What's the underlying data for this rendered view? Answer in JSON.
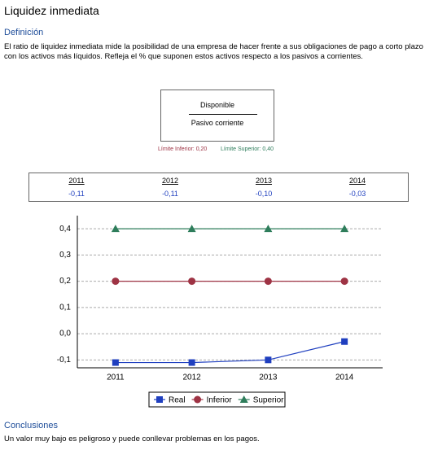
{
  "header": {
    "title": "Liquidez inmediata"
  },
  "definition": {
    "heading": "Definición",
    "text": "El ratio de liquidez inmediata mide la posibilidad de una empresa de hacer frente a sus obligaciones de pago a corto plazo con los activos más líquidos. Refleja el % que suponen estos activos respecto a los pasivos a corrientes."
  },
  "formula": {
    "numerator": "Disponible",
    "denominator": "Pasivo corriente"
  },
  "limits": {
    "lower_label": "Límite Inferior:",
    "lower_value": "0,20",
    "upper_label": "Límite Superior:",
    "upper_value": "0,40"
  },
  "table": {
    "columns": [
      "2011",
      "2012",
      "2013",
      "2014"
    ],
    "values": [
      "-0,11",
      "-0,11",
      "-0,10",
      "-0,03"
    ]
  },
  "chart_data": {
    "type": "line",
    "categories": [
      "2011",
      "2012",
      "2013",
      "2014"
    ],
    "series": [
      {
        "name": "Real",
        "color": "#1f3fbf",
        "marker": "square",
        "values": [
          -0.11,
          -0.11,
          -0.1,
          -0.03
        ]
      },
      {
        "name": "Inferior",
        "color": "#9e3344",
        "marker": "circle",
        "values": [
          0.2,
          0.2,
          0.2,
          0.2
        ]
      },
      {
        "name": "Superior",
        "color": "#2e7d5b",
        "marker": "triangle",
        "values": [
          0.4,
          0.4,
          0.4,
          0.4
        ]
      }
    ],
    "ylim": [
      -0.13,
      0.45
    ],
    "yticks": [
      {
        "value": -0.1,
        "label": "-0,1"
      },
      {
        "value": 0,
        "label": "0,0"
      },
      {
        "value": 0.1,
        "label": "0,1"
      },
      {
        "value": 0.2,
        "label": "0,2"
      },
      {
        "value": 0.3,
        "label": "0,3"
      },
      {
        "value": 0.4,
        "label": "0,4"
      }
    ],
    "grid": true,
    "legend": "bottom"
  },
  "conclusions": {
    "heading": "Conclusiones",
    "text": "Un valor muy bajo es peligroso y puede conllevar problemas en los pagos."
  }
}
